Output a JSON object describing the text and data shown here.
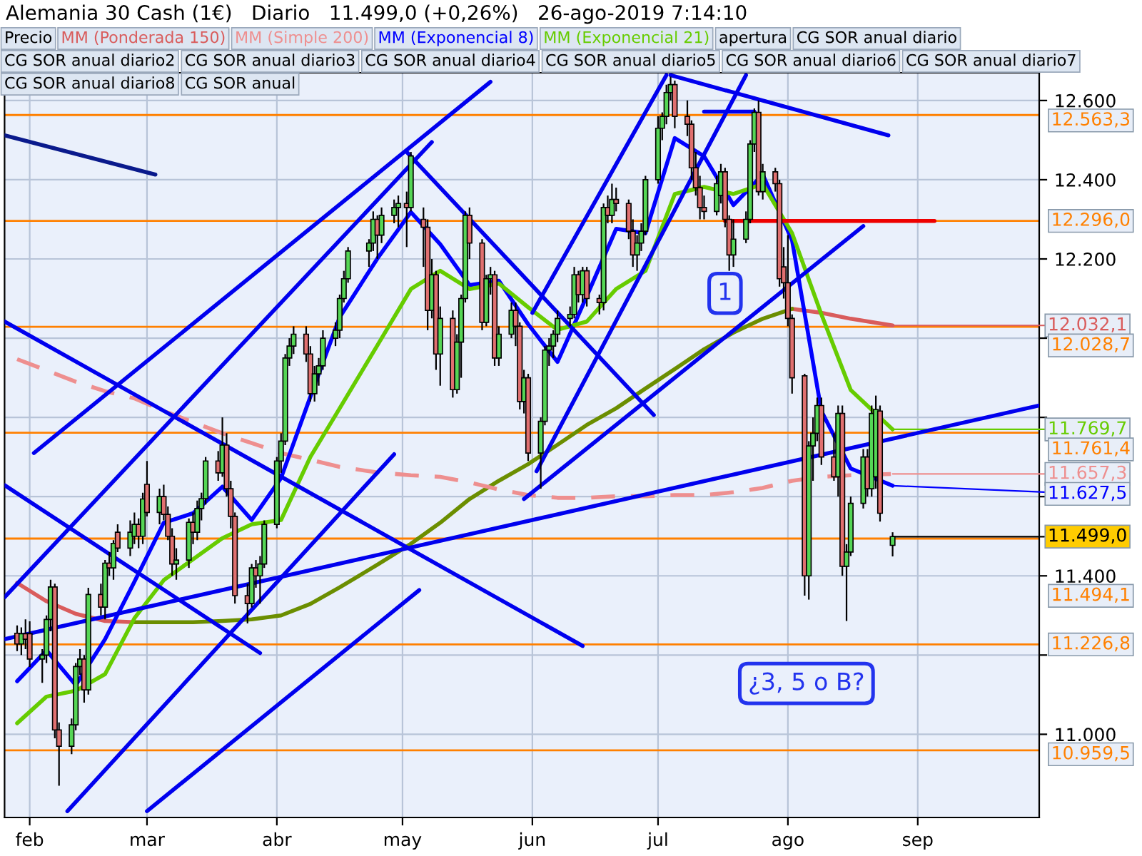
{
  "chart_data": {
    "type": "candlestick",
    "title": "Alemania 30 Cash (1€)   Diario   11.499,0 (+0,26%)   26-ago-2019 7:14:10",
    "x": [
      "2019-01-29",
      "2019-01-30",
      "2019-01-31",
      "2019-02-01",
      "2019-02-04",
      "2019-02-05",
      "2019-02-06",
      "2019-02-07",
      "2019-02-08",
      "2019-02-11",
      "2019-02-12",
      "2019-02-13",
      "2019-02-14",
      "2019-02-15",
      "2019-02-18",
      "2019-02-19",
      "2019-02-20",
      "2019-02-21",
      "2019-02-22",
      "2019-02-25",
      "2019-02-26",
      "2019-02-27",
      "2019-02-28",
      "2019-03-01",
      "2019-03-04",
      "2019-03-05",
      "2019-03-06",
      "2019-03-07",
      "2019-03-08",
      "2019-03-11",
      "2019-03-12",
      "2019-03-13",
      "2019-03-14",
      "2019-03-15",
      "2019-03-18",
      "2019-03-19",
      "2019-03-20",
      "2019-03-21",
      "2019-03-22",
      "2019-03-25",
      "2019-03-26",
      "2019-03-27",
      "2019-03-28",
      "2019-03-29",
      "2019-04-01",
      "2019-04-02",
      "2019-04-03",
      "2019-04-04",
      "2019-04-05",
      "2019-04-08",
      "2019-04-09",
      "2019-04-10",
      "2019-04-11",
      "2019-04-12",
      "2019-04-15",
      "2019-04-16",
      "2019-04-17",
      "2019-04-18",
      "2019-04-23",
      "2019-04-24",
      "2019-04-25",
      "2019-04-26",
      "2019-04-29",
      "2019-04-30",
      "2019-05-02",
      "2019-05-03",
      "2019-05-06",
      "2019-05-07",
      "2019-05-08",
      "2019-05-09",
      "2019-05-10",
      "2019-05-13",
      "2019-05-14",
      "2019-05-15",
      "2019-05-16",
      "2019-05-17",
      "2019-05-20",
      "2019-05-21",
      "2019-05-22",
      "2019-05-23",
      "2019-05-24",
      "2019-05-27",
      "2019-05-28",
      "2019-05-29",
      "2019-05-30",
      "2019-05-31",
      "2019-06-03",
      "2019-06-04",
      "2019-06-05",
      "2019-06-06",
      "2019-06-07",
      "2019-06-10",
      "2019-06-11",
      "2019-06-12",
      "2019-06-13",
      "2019-06-14",
      "2019-06-17",
      "2019-06-18",
      "2019-06-19",
      "2019-06-20",
      "2019-06-21",
      "2019-06-24",
      "2019-06-25",
      "2019-06-26",
      "2019-06-27",
      "2019-06-28",
      "2019-07-01",
      "2019-07-02",
      "2019-07-03",
      "2019-07-04",
      "2019-07-05",
      "2019-07-08",
      "2019-07-09",
      "2019-07-10",
      "2019-07-11",
      "2019-07-12",
      "2019-07-15",
      "2019-07-16",
      "2019-07-17",
      "2019-07-18",
      "2019-07-19",
      "2019-07-22",
      "2019-07-23",
      "2019-07-24",
      "2019-07-25",
      "2019-07-26",
      "2019-07-29",
      "2019-07-30",
      "2019-07-31",
      "2019-08-01",
      "2019-08-02",
      "2019-08-05",
      "2019-08-06",
      "2019-08-07",
      "2019-08-08",
      "2019-08-09",
      "2019-08-12",
      "2019-08-13",
      "2019-08-14",
      "2019-08-15",
      "2019-08-16",
      "2019-08-19",
      "2019-08-20",
      "2019-08-21",
      "2019-08-22",
      "2019-08-23",
      "2019-08-26"
    ],
    "ohlc": [
      [
        11255,
        11275,
        11210,
        11228
      ],
      [
        11228,
        11270,
        11200,
        11254
      ],
      [
        11254,
        11290,
        11215,
        11240
      ],
      [
        11254,
        11285,
        11170,
        11190
      ],
      [
        11190,
        11215,
        11130,
        11200
      ],
      [
        11200,
        11300,
        11180,
        11290
      ],
      [
        11290,
        11390,
        11260,
        11372
      ],
      [
        11372,
        11380,
        10990,
        11011
      ],
      [
        11011,
        11030,
        10870,
        10970
      ],
      [
        10970,
        11040,
        10950,
        11024
      ],
      [
        11024,
        11180,
        11010,
        11171
      ],
      [
        11171,
        11215,
        11150,
        11190
      ],
      [
        11190,
        11200,
        11080,
        11112
      ],
      [
        11112,
        11370,
        11100,
        11353
      ],
      [
        11353,
        11380,
        11300,
        11321
      ],
      [
        11321,
        11440,
        11290,
        11432
      ],
      [
        11432,
        11460,
        11400,
        11420
      ],
      [
        11420,
        11490,
        11390,
        11482
      ],
      [
        11510,
        11530,
        11460,
        11470
      ],
      [
        11470,
        11540,
        11450,
        11510
      ],
      [
        11500,
        11560,
        11480,
        11530
      ],
      [
        11530,
        11545,
        11470,
        11500
      ],
      [
        11500,
        11610,
        11480,
        11594
      ],
      [
        11631,
        11690,
        11550,
        11560
      ],
      [
        11560,
        11620,
        11530,
        11600
      ],
      [
        11600,
        11630,
        11540,
        11555
      ],
      [
        11555,
        11575,
        11490,
        11500
      ],
      [
        11500,
        11520,
        11400,
        11430
      ],
      [
        11430,
        11470,
        11390,
        11440
      ],
      [
        11440,
        11545,
        11420,
        11535
      ],
      [
        11535,
        11560,
        11480,
        11510
      ],
      [
        11510,
        11590,
        11490,
        11570
      ],
      [
        11570,
        11610,
        11540,
        11595
      ],
      [
        11595,
        11700,
        11580,
        11690
      ],
      [
        11690,
        11715,
        11640,
        11660
      ],
      [
        11660,
        11800,
        11650,
        11730
      ],
      [
        11730,
        11760,
        11600,
        11620
      ],
      [
        11620,
        11640,
        11520,
        11550
      ],
      [
        11550,
        11560,
        11330,
        11350
      ],
      [
        11350,
        11380,
        11280,
        11330
      ],
      [
        11330,
        11430,
        11320,
        11420
      ],
      [
        11420,
        11440,
        11370,
        11400
      ],
      [
        11400,
        11450,
        11330,
        11430
      ],
      [
        11430,
        11540,
        11420,
        11530
      ],
      [
        11530,
        11700,
        11520,
        11690
      ],
      [
        11690,
        11760,
        11660,
        11740
      ],
      [
        11740,
        11960,
        11730,
        11950
      ],
      [
        11950,
        12000,
        11930,
        11980
      ],
      [
        11980,
        12030,
        11960,
        12010
      ],
      [
        12010,
        12030,
        11940,
        11960
      ],
      [
        11960,
        11980,
        11840,
        11860
      ],
      [
        11860,
        11930,
        11840,
        11910
      ],
      [
        11910,
        11950,
        11880,
        11930
      ],
      [
        11930,
        12020,
        11920,
        12000
      ],
      [
        12000,
        12040,
        11980,
        12020
      ],
      [
        12020,
        12110,
        12000,
        12100
      ],
      [
        12100,
        12170,
        12090,
        12150
      ],
      [
        12150,
        12230,
        12140,
        12220
      ],
      [
        12220,
        12250,
        12180,
        12240
      ],
      [
        12240,
        12320,
        12220,
        12300
      ],
      [
        12300,
        12310,
        12200,
        12260
      ],
      [
        12260,
        12330,
        12240,
        12310
      ],
      [
        12310,
        12350,
        12290,
        12330
      ],
      [
        12330,
        12360,
        12280,
        12340
      ],
      [
        12340,
        12370,
        12230,
        12330
      ],
      [
        12330,
        12470,
        12320,
        12460
      ],
      [
        12300,
        12330,
        12180,
        12280
      ],
      [
        12280,
        12300,
        12020,
        12070
      ],
      [
        12070,
        12200,
        12050,
        12160
      ],
      [
        12160,
        12170,
        11920,
        11960
      ],
      [
        11960,
        12080,
        11880,
        12050
      ],
      [
        12050,
        12070,
        11850,
        11870
      ],
      [
        11870,
        12010,
        11860,
        11990
      ],
      [
        11990,
        12110,
        11900,
        12100
      ],
      [
        12100,
        12320,
        12090,
        12310
      ],
      [
        12310,
        12330,
        12200,
        12240
      ],
      [
        12240,
        12250,
        12020,
        12040
      ],
      [
        12040,
        12160,
        12030,
        12150
      ],
      [
        12150,
        12180,
        12110,
        12160
      ],
      [
        12160,
        12170,
        11930,
        11950
      ],
      [
        11950,
        12030,
        11930,
        12010
      ],
      [
        12010,
        12090,
        12000,
        12070
      ],
      [
        12070,
        12090,
        11980,
        12030
      ],
      [
        12030,
        12040,
        11820,
        11840
      ],
      [
        11840,
        11920,
        11810,
        11900
      ],
      [
        11900,
        11910,
        11690,
        11710
      ],
      [
        11710,
        11800,
        11620,
        11790
      ],
      [
        11790,
        11980,
        11780,
        11970
      ],
      [
        11970,
        12000,
        11930,
        11980
      ],
      [
        11980,
        12020,
        11950,
        12010
      ],
      [
        12010,
        12070,
        11990,
        12050
      ],
      [
        12050,
        12080,
        12030,
        12060
      ],
      [
        12060,
        12180,
        12050,
        12160
      ],
      [
        12160,
        12170,
        12090,
        12110
      ],
      [
        12110,
        12180,
        12090,
        12170
      ],
      [
        12170,
        12180,
        12080,
        12100
      ],
      [
        12100,
        12110,
        12060,
        12090
      ],
      [
        12090,
        12340,
        12070,
        12330
      ],
      [
        12330,
        12360,
        12290,
        12310
      ],
      [
        12310,
        12390,
        12290,
        12350
      ],
      [
        12350,
        12380,
        12320,
        12340
      ],
      [
        12340,
        12350,
        12250,
        12270
      ],
      [
        12270,
        12300,
        12180,
        12210
      ],
      [
        12210,
        12260,
        12170,
        12240
      ],
      [
        12240,
        12290,
        12220,
        12270
      ],
      [
        12270,
        12410,
        12260,
        12400
      ],
      [
        12400,
        12560,
        12390,
        12530
      ],
      [
        12530,
        12570,
        12500,
        12560
      ],
      [
        12560,
        12640,
        12540,
        12620
      ],
      [
        12620,
        12660,
        12600,
        12640
      ],
      [
        12640,
        12650,
        12530,
        12560
      ],
      [
        12560,
        12600,
        12510,
        12540
      ],
      [
        12540,
        12550,
        12400,
        12430
      ],
      [
        12430,
        12470,
        12360,
        12380
      ],
      [
        12380,
        12410,
        12300,
        12330
      ],
      [
        12330,
        12360,
        12300,
        12320
      ],
      [
        12320,
        12410,
        12310,
        12390
      ],
      [
        12360,
        12440,
        12340,
        12420
      ],
      [
        12420,
        12430,
        12280,
        12300
      ],
      [
        12300,
        12310,
        12170,
        12210
      ],
      [
        12210,
        12300,
        12180,
        12250
      ],
      [
        12250,
        12320,
        12240,
        12300
      ],
      [
        12300,
        12500,
        12290,
        12490
      ],
      [
        12490,
        12580,
        12470,
        12570
      ],
      [
        12570,
        12600,
        12360,
        12370
      ],
      [
        12370,
        12440,
        12350,
        12420
      ],
      [
        12420,
        12430,
        12370,
        12390
      ],
      [
        12390,
        12400,
        12130,
        12150
      ],
      [
        12180,
        12230,
        12100,
        12140
      ],
      [
        12140,
        12260,
        12030,
        12050
      ],
      [
        12050,
        12060,
        11860,
        11900
      ],
      [
        11905,
        11910,
        11350,
        11400
      ],
      [
        11400,
        11740,
        11340,
        11728
      ],
      [
        11728,
        11800,
        11640,
        11760
      ],
      [
        11760,
        11850,
        11740,
        11830
      ],
      [
        11830,
        11850,
        11680,
        11700
      ],
      [
        11700,
        11760,
        11640,
        11650
      ],
      [
        11650,
        11830,
        11600,
        11810
      ],
      [
        11810,
        11830,
        11400,
        11424
      ],
      [
        11424,
        11480,
        11286,
        11460
      ],
      [
        11460,
        11600,
        11450,
        11583
      ],
      [
        11583,
        11720,
        11570,
        11700
      ],
      [
        11700,
        11720,
        11600,
        11620
      ],
      [
        11620,
        11830,
        11600,
        11810
      ],
      [
        11650,
        11855,
        11620,
        11820
      ],
      [
        11816,
        11830,
        11537,
        11558
      ],
      [
        11477,
        11510,
        11449,
        11499
      ]
    ],
    "series": [
      {
        "name": "MM (Ponderada 150)",
        "color": "#d95c5c",
        "type": "line",
        "x": [
          "2019-01-29",
          "2019-02-05",
          "2019-02-12",
          "2019-02-19",
          "2019-02-26",
          "2019-03-05",
          "2019-03-12",
          "2019-03-19",
          "2019-03-26",
          "2019-04-02",
          "2019-04-09",
          "2019-04-16",
          "2019-04-25",
          "2019-05-03",
          "2019-05-10",
          "2019-05-17",
          "2019-05-24",
          "2019-05-31",
          "2019-06-07",
          "2019-06-14",
          "2019-06-21",
          "2019-06-28",
          "2019-07-05",
          "2019-07-12",
          "2019-07-19",
          "2019-07-26",
          "2019-08-02",
          "2019-08-09",
          "2019-08-16",
          "2019-08-26"
        ],
        "values": [
          11382,
          11336,
          11304,
          11286,
          11283,
          null,
          null,
          null,
          null,
          null,
          null,
          null,
          null,
          null,
          null,
          null,
          null,
          null,
          null,
          null,
          null,
          null,
          null,
          null,
          null,
          null,
          12074,
          12064,
          12049,
          12032.1
        ],
        "value_labels": [
          null,
          null,
          null,
          null,
          null,
          null,
          null,
          null,
          null,
          null,
          null,
          null,
          null,
          null,
          null,
          null,
          null,
          null,
          null,
          null,
          null,
          null,
          null,
          null,
          null,
          null,
          null,
          null,
          null,
          "12.032,1"
        ]
      },
      {
        "color": "#6b8e00",
        "type": "line",
        "x": [
          "2019-02-26",
          "2019-03-05",
          "2019-03-12",
          "2019-03-19",
          "2019-03-26",
          "2019-04-02",
          "2019-04-09",
          "2019-04-16",
          "2019-04-25",
          "2019-05-03",
          "2019-05-10",
          "2019-05-17",
          "2019-05-24",
          "2019-05-31",
          "2019-06-07",
          "2019-06-14",
          "2019-06-21",
          "2019-06-28",
          "2019-07-05",
          "2019-07-12",
          "2019-07-19",
          "2019-07-26",
          "2019-08-02"
        ],
        "values": [
          11283,
          11283,
          11283,
          11286,
          11290,
          11300,
          11329,
          11371,
          11428,
          11481,
          11534,
          11594,
          11640,
          11682,
          11731,
          11781,
          11823,
          11873,
          11922,
          11972,
          12014,
          12049,
          12074
        ]
      },
      {
        "name": "MM (Simple 200)",
        "color": "#ee8f8f",
        "type": "line",
        "line_style": "dashed",
        "x": [
          "2019-01-29",
          "2019-02-05",
          "2019-02-12",
          "2019-02-19",
          "2019-02-26",
          "2019-03-05",
          "2019-03-12",
          "2019-03-19",
          "2019-03-26",
          "2019-04-02",
          "2019-04-09",
          "2019-04-16",
          "2019-04-25",
          "2019-05-03",
          "2019-05-10",
          "2019-05-17",
          "2019-05-24",
          "2019-05-31",
          "2019-06-07",
          "2019-06-14",
          "2019-06-21",
          "2019-06-28",
          "2019-07-05",
          "2019-07-12",
          "2019-07-19",
          "2019-07-26",
          "2019-08-02",
          "2019-08-09",
          "2019-08-16",
          "2019-08-26"
        ],
        "values": [
          11947,
          11919,
          11890,
          11866,
          11848,
          11816,
          11788,
          11760,
          11735,
          11710,
          11693,
          11675,
          11661,
          11654,
          11650,
          11636,
          11618,
          11604,
          11597,
          11597,
          11601,
          11601,
          11604,
          11604,
          11611,
          11622,
          11640,
          11650,
          11654,
          11657.3
        ],
        "value_labels": [
          null,
          null,
          null,
          null,
          null,
          null,
          null,
          null,
          null,
          null,
          null,
          null,
          null,
          null,
          null,
          null,
          null,
          null,
          null,
          null,
          null,
          null,
          null,
          null,
          null,
          null,
          null,
          null,
          null,
          "11.657,3"
        ]
      },
      {
        "name": "MM (Exponencial 8)",
        "color": "#0000ff",
        "type": "line",
        "x": [
          "2019-01-29",
          "2019-02-05",
          "2019-02-12",
          "2019-02-19",
          "2019-02-26",
          "2019-03-05",
          "2019-03-12",
          "2019-03-19",
          "2019-03-26",
          "2019-04-02",
          "2019-04-09",
          "2019-04-16",
          "2019-04-25",
          "2019-05-03",
          "2019-05-10",
          "2019-05-17",
          "2019-05-24",
          "2019-05-31",
          "2019-06-07",
          "2019-06-14",
          "2019-06-21",
          "2019-06-28",
          "2019-07-05",
          "2019-07-12",
          "2019-07-19",
          "2019-07-26",
          "2019-08-02",
          "2019-08-09",
          "2019-08-16",
          "2019-08-26"
        ],
        "values": [
          11134,
          11212,
          11124,
          11240,
          11385,
          11534,
          11558,
          11625,
          11541,
          11647,
          11852,
          12053,
          12201,
          12318,
          12237,
          12134,
          12145,
          12035,
          11940,
          12106,
          12276,
          12265,
          12505,
          12459,
          12336,
          12413,
          12247,
          11816,
          11671,
          11627.5
        ],
        "value_labels": [
          null,
          null,
          null,
          null,
          null,
          null,
          null,
          null,
          null,
          null,
          null,
          null,
          null,
          null,
          null,
          null,
          null,
          null,
          null,
          null,
          null,
          null,
          null,
          null,
          null,
          null,
          null,
          null,
          null,
          "11.627,5"
        ]
      },
      {
        "name": "MM (Exponencial 21)",
        "color": "#66cc00",
        "type": "line",
        "x": [
          "2019-01-29",
          "2019-02-05",
          "2019-02-12",
          "2019-02-19",
          "2019-02-26",
          "2019-03-05",
          "2019-03-12",
          "2019-03-19",
          "2019-03-26",
          "2019-04-02",
          "2019-04-09",
          "2019-04-16",
          "2019-04-25",
          "2019-05-03",
          "2019-05-10",
          "2019-05-17",
          "2019-05-24",
          "2019-05-31",
          "2019-06-07",
          "2019-06-14",
          "2019-06-21",
          "2019-06-28",
          "2019-07-05",
          "2019-07-12",
          "2019-07-19",
          "2019-07-26",
          "2019-08-02",
          "2019-08-09",
          "2019-08-16",
          "2019-08-26"
        ],
        "values": [
          11028,
          11095,
          11110,
          11152,
          11293,
          11389,
          11442,
          11495,
          11530,
          11541,
          11700,
          11823,
          11982,
          12124,
          12170,
          12124,
          12138,
          12078,
          12021,
          12042,
          12124,
          12170,
          12364,
          12382,
          12364,
          12389,
          12265,
          12060,
          11869,
          11769.7
        ],
        "value_labels": [
          null,
          null,
          null,
          null,
          null,
          null,
          null,
          null,
          null,
          null,
          null,
          null,
          null,
          null,
          null,
          null,
          null,
          null,
          null,
          null,
          null,
          null,
          null,
          null,
          null,
          null,
          null,
          null,
          null,
          "11.769,7"
        ]
      },
      {
        "color": "#0a1a8c",
        "type": "line",
        "x": [
          "2019-01-26",
          "2019-03-03"
        ],
        "values": [
          12512,
          12413
        ]
      },
      {
        "color": "#0000ee",
        "type": "line",
        "x": [
          "2019-02-02",
          "2019-05-22"
        ],
        "values": [
          11710,
          12647
        ]
      },
      {
        "color": "#0000ee",
        "type": "line",
        "x": [
          "2019-01-26",
          "2019-05-08"
        ],
        "values": [
          11346,
          12495
        ]
      },
      {
        "color": "#0000ee",
        "type": "line",
        "x": [
          "2019-02-10",
          "2019-04-29"
        ],
        "values": [
          10806,
          11707
        ]
      },
      {
        "color": "#0000ee",
        "type": "line",
        "x": [
          "2019-03-01",
          "2019-05-05"
        ],
        "values": [
          10806,
          11364
        ]
      },
      {
        "color": "#0000ee",
        "type": "line",
        "x": [
          "2019-01-26",
          "2019-03-28"
        ],
        "values": [
          11629,
          11205
        ]
      },
      {
        "color": "#0000ee",
        "type": "line",
        "x": [
          "2019-01-26",
          "2019-06-13"
        ],
        "values": [
          12042,
          11223
        ]
      },
      {
        "color": "#0000ee",
        "type": "line",
        "x": [
          "2019-05-02",
          "2019-06-30"
        ],
        "values": [
          12470,
          11806
        ]
      },
      {
        "color": "#0000ee",
        "type": "line",
        "x": [
          "2019-06-01",
          "2019-07-03"
        ],
        "values": [
          12064,
          12664
        ]
      },
      {
        "color": "#0000ee",
        "type": "line",
        "x": [
          "2019-06-02",
          "2019-07-22"
        ],
        "values": [
          11664,
          12664
        ]
      },
      {
        "color": "#0000ee",
        "type": "line",
        "x": [
          "2019-05-30",
          "2019-08-19"
        ],
        "values": [
          11594,
          12283
        ]
      },
      {
        "color": "#0000ee",
        "type": "line",
        "x": [
          "2019-07-04",
          "2019-08-25"
        ],
        "values": [
          12664,
          12512
        ]
      },
      {
        "color": "#0000ee",
        "type": "line",
        "x": [
          "2019-07-12",
          "2019-07-24"
        ],
        "values": [
          12572,
          12572
        ]
      },
      {
        "color": "#0000ee",
        "type": "line",
        "x": [
          "2019-01-26",
          "2019-09-30"
        ],
        "values": [
          11240,
          11830
        ]
      },
      {
        "color": "#ee0000",
        "type": "line",
        "x": [
          "2019-07-17",
          "2019-09-05"
        ],
        "values": [
          12296.0,
          12296.0
        ]
      }
    ],
    "ref_lines": [
      {
        "axis": "y",
        "value": 12563.3,
        "label": "12.563,3",
        "color": "#ff8000"
      },
      {
        "axis": "y",
        "value": 12296.0,
        "label": "12.296,0",
        "color": "#ff8000"
      },
      {
        "axis": "y",
        "value": 12028.7,
        "label": "12.028,7",
        "color": "#ff8000"
      },
      {
        "axis": "y",
        "value": 11761.4,
        "label": "11.761,4",
        "color": "#ff8000"
      },
      {
        "axis": "y",
        "value": 11494.1,
        "label": "11.494,1",
        "color": "#ff8000"
      },
      {
        "axis": "y",
        "value": 11226.8,
        "label": "11.226,8",
        "color": "#ff8000"
      },
      {
        "axis": "y",
        "value": 10959.5,
        "label": "10.959,5",
        "color": "#ff8000"
      }
    ],
    "annotations": [
      "Precio",
      "apertura",
      "CG SOR anual diario",
      "CG SOR anual diario2",
      "CG SOR anual diario3",
      "CG SOR anual diario4",
      "CG SOR anual diario5",
      "CG SOR anual diario6",
      "CG SOR anual diario7",
      "CG SOR anual diario8",
      "CG SOR anual",
      {
        "text": "1",
        "x": "2019-07-17",
        "y": 12113
      },
      "¿3, 5 o B?",
      {
        "text": "11.499,0",
        "x": "2019-08-26",
        "y": 11499.0
      }
    ],
    "xlim": [
      "2019-01-26",
      "2019-09-30"
    ],
    "ylim": [
      10790,
      12670
    ],
    "xticks": [
      {
        "value": "2019-02-01",
        "label": "feb"
      },
      {
        "value": "2019-03-01",
        "label": "mar"
      },
      {
        "value": "2019-04-01",
        "label": "abr"
      },
      {
        "value": "2019-05-01",
        "label": "may"
      },
      {
        "value": "2019-06-01",
        "label": "jun"
      },
      {
        "value": "2019-07-01",
        "label": "jul"
      },
      {
        "value": "2019-08-01",
        "label": "ago"
      },
      {
        "value": "2019-09-01",
        "label": "sep"
      }
    ],
    "yticks": [
      {
        "value": 12600,
        "label": "12.600"
      },
      {
        "value": 12400,
        "label": "12.400"
      },
      {
        "value": 12200,
        "label": "12.200"
      },
      {
        "value": 12000,
        "label": null
      },
      {
        "value": 11800,
        "label": null
      },
      {
        "value": 11600,
        "label": null
      },
      {
        "value": 11400,
        "label": "11.400"
      },
      {
        "value": 11200,
        "label": null
      },
      {
        "value": 11000,
        "label": "11.000"
      }
    ],
    "grid": true,
    "legend": "top"
  }
}
